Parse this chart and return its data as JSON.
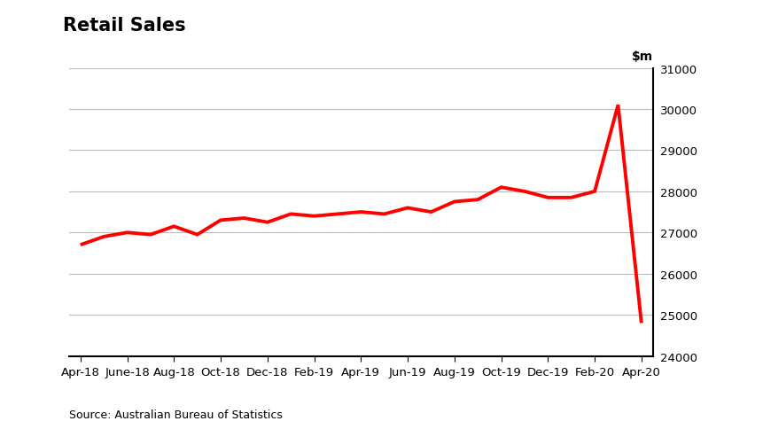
{
  "title": "Retail Sales",
  "source_text": "Source: Australian Bureau of Statistics",
  "line_color": "#FF0000",
  "line_width": 2.8,
  "background_color": "#FFFFFF",
  "ylim": [
    24000,
    31000
  ],
  "yticks": [
    24000,
    25000,
    26000,
    27000,
    28000,
    29000,
    30000,
    31000
  ],
  "x_labels": [
    "Apr-18",
    "June-18",
    "Aug-18",
    "Oct-18",
    "Dec-18",
    "Feb-19",
    "Apr-19",
    "Jun-19",
    "Aug-19",
    "Oct-19",
    "Dec-19",
    "Feb-20",
    "Apr-20"
  ],
  "x_values": [
    0,
    2,
    4,
    6,
    8,
    10,
    12,
    14,
    16,
    18,
    20,
    22,
    24
  ],
  "data_x": [
    0,
    1,
    2,
    3,
    4,
    5,
    6,
    7,
    8,
    9,
    10,
    11,
    12,
    13,
    14,
    15,
    16,
    17,
    18,
    19,
    20,
    21,
    22,
    23,
    24
  ],
  "data_y": [
    26700,
    26900,
    27000,
    26950,
    27150,
    26950,
    27300,
    27350,
    27250,
    27450,
    27400,
    27450,
    27500,
    27450,
    27600,
    27500,
    27750,
    27800,
    28100,
    28000,
    27850,
    27850,
    28000,
    30100,
    24800
  ]
}
